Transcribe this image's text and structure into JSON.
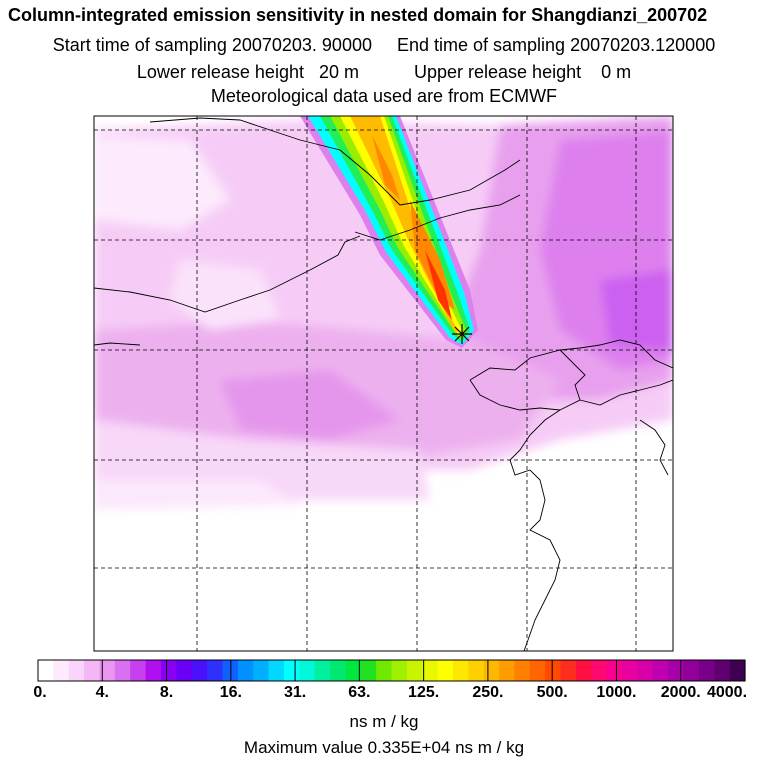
{
  "header": {
    "title": "Column-integrated emission sensitivity in nested domain for Shangdianzi_200702",
    "line2": "Start time of sampling 20070203. 90000     End time of sampling 20070203.120000",
    "line3": "Lower release height   20 m           Upper release height    0 m",
    "line4": "Meteorological data used are from ECMWF"
  },
  "map": {
    "station_marker": "star-marker",
    "plume_colors": [
      "#00ffff",
      "#00ee55",
      "#88ee00",
      "#ffff00",
      "#ffbb00",
      "#ff8800",
      "#ff3300"
    ],
    "background_colors": [
      "#ffffff",
      "#fbe0fb",
      "#f3b8f3",
      "#e99ae9",
      "#dd80ee"
    ]
  },
  "colorbar": {
    "tick_labels": [
      "0.",
      "4.",
      "8.",
      "16.",
      "31.",
      "63.",
      "125.",
      "250.",
      "500.",
      "1000.",
      "2000.",
      "4000."
    ],
    "colors": [
      "#ffffff",
      "#fdeafd",
      "#fad4fa",
      "#f4b6f4",
      "#e896ee",
      "#d870f0",
      "#c640f0",
      "#b010f0",
      "#8a00f4",
      "#6a00f8",
      "#4a10fa",
      "#3030fc",
      "#1060ff",
      "#0090ff",
      "#00b0ff",
      "#00d8ff",
      "#00ffff",
      "#00f8d8",
      "#00f0a0",
      "#00e870",
      "#00e840",
      "#20e020",
      "#70e800",
      "#a0f000",
      "#c8f400",
      "#e8f800",
      "#ffff00",
      "#ffe800",
      "#ffd000",
      "#ffb800",
      "#ff9c00",
      "#ff8000",
      "#ff6400",
      "#ff4800",
      "#ff2c20",
      "#ff1040",
      "#ff0870",
      "#f80090",
      "#e800a0",
      "#d800a8",
      "#c000b0",
      "#a800a8",
      "#900098",
      "#780088",
      "#600070",
      "#400050"
    ],
    "units": "ns m / kg"
  },
  "footer": {
    "max_value": "Maximum value  0.335E+04 ns m / kg"
  }
}
